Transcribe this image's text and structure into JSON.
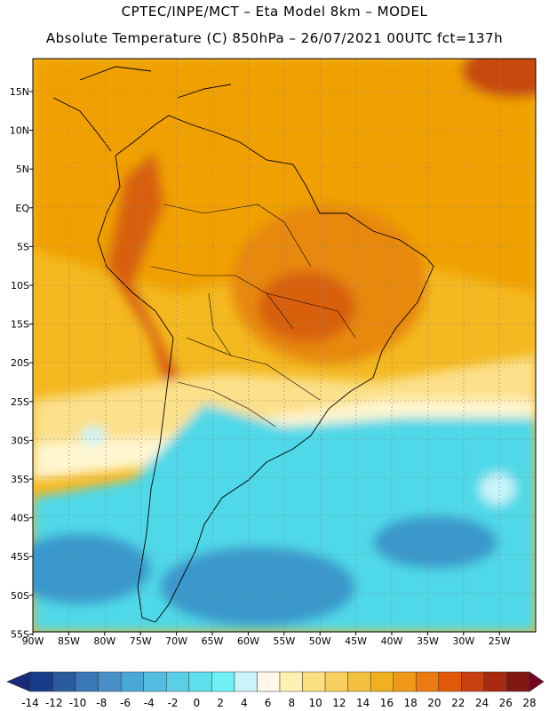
{
  "header": {
    "line1": "CPTEC/INPE/MCT –  Eta Model 8km – MODEL",
    "line2": "Absolute Temperature (C) 850hPa – 26/07/2021 00UTC fct=137h"
  },
  "map": {
    "lat_labels": [
      "15N",
      "10N",
      "5N",
      "EQ",
      "5S",
      "10S",
      "15S",
      "20S",
      "25S",
      "30S",
      "35S",
      "40S",
      "45S",
      "50S",
      "55S"
    ],
    "lon_labels": [
      "90W",
      "85W",
      "80W",
      "75W",
      "70W",
      "65W",
      "60W",
      "55W",
      "50W",
      "45W",
      "40W",
      "35W",
      "30W",
      "25W"
    ],
    "regions": [
      {
        "name": "north-warm",
        "color": "#f0a000"
      },
      {
        "name": "tropical-band",
        "color": "#f4b820"
      },
      {
        "name": "brazil-hot-core",
        "color": "#e88810"
      },
      {
        "name": "central-heat",
        "color": "#d86010"
      },
      {
        "name": "atlantic-nw-hot",
        "color": "#c84a10"
      },
      {
        "name": "subtropic-yellow",
        "color": "#fce08a"
      },
      {
        "name": "transition-pale",
        "color": "#fff6d0"
      },
      {
        "name": "south-cold",
        "color": "#50d8e8"
      },
      {
        "name": "deep-cold",
        "color": "#3a98cc"
      }
    ]
  },
  "colorbar": {
    "ticks": [
      "-14",
      "-12",
      "-10",
      "-8",
      "-6",
      "-4",
      "-2",
      "0",
      "2",
      "4",
      "6",
      "8",
      "10",
      "12",
      "14",
      "16",
      "18",
      "20",
      "22",
      "24",
      "26",
      "28"
    ],
    "colors": [
      "#1a3a8a",
      "#2a5aa0",
      "#3a78b8",
      "#4a90c8",
      "#4aa8d8",
      "#52bde0",
      "#5acfe6",
      "#60e0ee",
      "#6ef0f4",
      "#c8f4fa",
      "#fff8e8",
      "#fff2b0",
      "#fce080",
      "#f8d060",
      "#f4c040",
      "#f0b020",
      "#f09818",
      "#ec7a10",
      "#e05808",
      "#c84010",
      "#a82a10",
      "#801810"
    ],
    "low_cap": "#1a2a7a",
    "high_cap": "#7a0020"
  }
}
